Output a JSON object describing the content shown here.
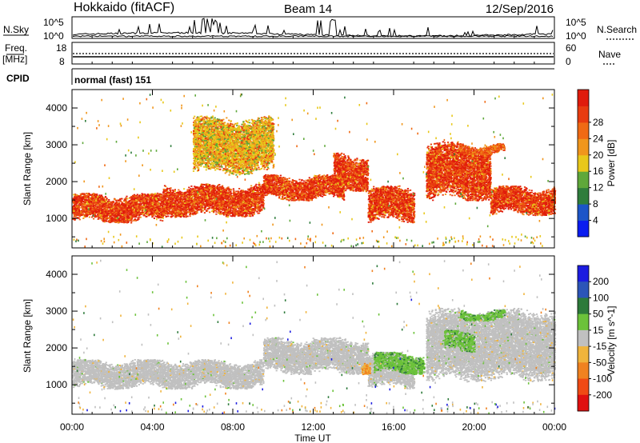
{
  "header": {
    "station": "Hokkaido (fitACF)",
    "beam": "Beam 14",
    "date": "12/Sep/2016"
  },
  "sky_panel": {
    "left_label": "N.Sky",
    "right_label": "N.Search",
    "left_ticks": [
      "10^5",
      "10^0"
    ],
    "right_ticks": [
      "10^5",
      "10^0"
    ]
  },
  "freq_panel": {
    "left_label_1": "Freq.",
    "left_label_2": "[MHz]",
    "left_ticks": [
      "18",
      "8"
    ],
    "right_label": "Nave",
    "right_ticks": [
      "60",
      "0"
    ]
  },
  "cpid_panel": {
    "label": "CPID",
    "text": "normal (fast) 151"
  },
  "icons": {
    "n_search_marker": "dotted-line-icon",
    "nave_marker": "dotted-line-icon"
  },
  "chart_data": [
    {
      "type": "heatmap",
      "name": "power",
      "ylabel": "Slant Range [km]",
      "ylim": [
        200,
        4500
      ],
      "yticks": [
        1000,
        2000,
        3000,
        4000
      ],
      "xlim_hours": [
        0,
        24
      ],
      "colorbar": {
        "label": "Power [dB]",
        "ticks": [
          "4",
          "8",
          "12",
          "16",
          "20",
          "24",
          "28"
        ],
        "colors": [
          "#0a1cf0",
          "#1c55c8",
          "#2f7d3c",
          "#5fa83a",
          "#e8c81a",
          "#f0961c",
          "#f06a14",
          "#e83c10",
          "#e01c0c"
        ]
      },
      "regions": [
        {
          "x": [
            0.0,
            4.5
          ],
          "y": [
            900,
            1700
          ],
          "level": "strong"
        },
        {
          "x": [
            4.5,
            9.5
          ],
          "y": [
            1050,
            1950
          ],
          "level": "strong"
        },
        {
          "x": [
            9.5,
            13.5
          ],
          "y": [
            1500,
            2200
          ],
          "level": "strong"
        },
        {
          "x": [
            13.0,
            14.7
          ],
          "y": [
            1750,
            2800
          ],
          "level": "strong"
        },
        {
          "x": [
            14.7,
            17.0
          ],
          "y": [
            900,
            1900
          ],
          "level": "strong"
        },
        {
          "x": [
            17.6,
            20.8
          ],
          "y": [
            1500,
            3100
          ],
          "level": "strong"
        },
        {
          "x": [
            20.8,
            24.0
          ],
          "y": [
            1100,
            1900
          ],
          "level": "strong"
        },
        {
          "x": [
            19.2,
            21.5
          ],
          "y": [
            2750,
            3050
          ],
          "level": "medium"
        },
        {
          "x": [
            6.0,
            10.0
          ],
          "y": [
            2200,
            3800
          ],
          "level": "weak"
        }
      ]
    },
    {
      "type": "heatmap",
      "name": "velocity",
      "ylabel": "Slant Range [km]",
      "ylim": [
        200,
        4500
      ],
      "yticks": [
        1000,
        2000,
        3000,
        4000
      ],
      "xlim_hours": [
        0,
        24
      ],
      "xticks": [
        "00:00",
        "04:00",
        "08:00",
        "12:00",
        "16:00",
        "20:00",
        "00:00"
      ],
      "xlabel": "Time UT",
      "colorbar": {
        "label": "Velocity [m s^-1]",
        "ticks": [
          "200",
          "100",
          "50",
          "15",
          "-15",
          "-50",
          "-100",
          "-200"
        ],
        "colors": [
          "#1c1ce0",
          "#2c55b8",
          "#2d7a3a",
          "#6cc23a",
          "#c0c0c0",
          "#f0b43c",
          "#f08220",
          "#f04a14",
          "#e01010"
        ]
      },
      "regions": [
        {
          "x": [
            0.0,
            9.5
          ],
          "y": [
            900,
            1700
          ],
          "value": "ground"
        },
        {
          "x": [
            9.5,
            14.7
          ],
          "y": [
            1300,
            2300
          ],
          "value": "ground"
        },
        {
          "x": [
            14.7,
            17.0
          ],
          "y": [
            900,
            1900
          ],
          "value": "ground"
        },
        {
          "x": [
            17.6,
            24.0
          ],
          "y": [
            1100,
            3100
          ],
          "value": "ground"
        },
        {
          "x": [
            15.0,
            17.5
          ],
          "y": [
            1300,
            1900
          ],
          "value": "50"
        },
        {
          "x": [
            18.5,
            20.0
          ],
          "y": [
            1900,
            2500
          ],
          "value": "50"
        },
        {
          "x": [
            19.3,
            21.5
          ],
          "y": [
            2750,
            3050
          ],
          "value": "50"
        },
        {
          "x": [
            14.4,
            14.8
          ],
          "y": [
            1300,
            1700
          ],
          "value": "-50"
        }
      ]
    }
  ]
}
